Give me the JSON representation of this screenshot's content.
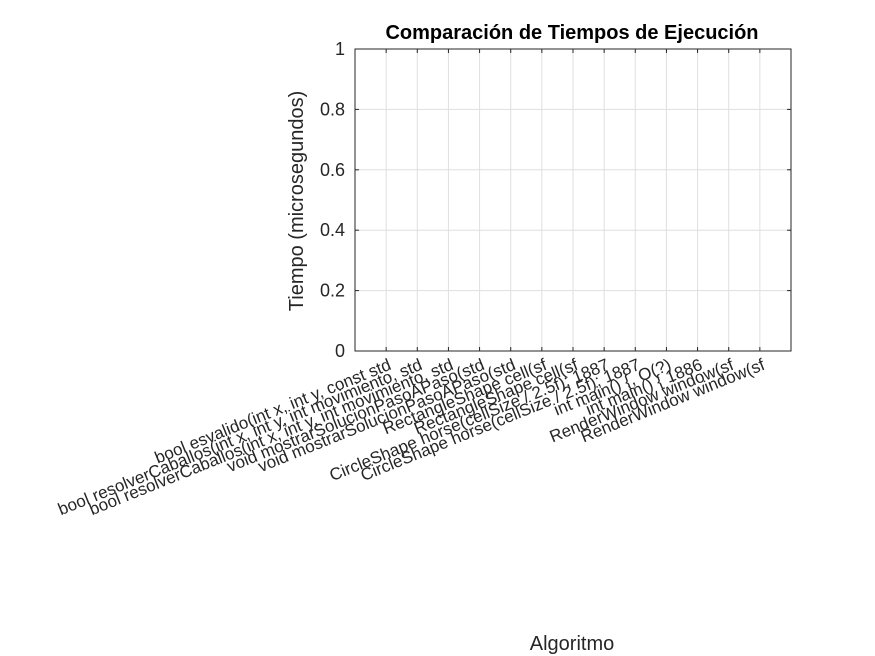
{
  "chart_data": {
    "type": "bar",
    "title": "Comparación de Tiempos de Ejecución",
    "xlabel": "Algoritmo",
    "ylabel": "Tiempo (microsegundos)",
    "ylim": [
      0,
      1
    ],
    "yticks": [
      0,
      0.2,
      0.4,
      0.6,
      0.8,
      1
    ],
    "ytick_labels": [
      "0",
      "0.2",
      "0.4",
      "0.6",
      "0.8",
      "1"
    ],
    "grid": true,
    "categories": [
      "bool esvalido(int x, int y, const std",
      "bool resolverCaballos(int x, int y, int movimiento, std",
      "bool resolverCaballos(int x, int y, int movimiento, std",
      "void mostrarSolucionPasoAPaso(std",
      "void mostrarSolucionPasoAPaso(std",
      "RectangleShape cell(sf",
      "RectangleShape cell(sf",
      "CircleShape horse(cellSize / 2.5f); 1887",
      "CircleShape horse(cellSize / 2.5f); 1887",
      "int main() { 1886",
      "int main() {, O(?)",
      "RenderWindow window(sf",
      "RenderWindow window(sf"
    ],
    "visible_categories": [
      "bool esvalido(int x, int y, const std",
      "bool resolverCaballos(int x, int y, int movimiento, std",
      "bool resolverCaballos(int x, int y, int movimiento, std",
      "void mostrarSolucionPasoAPaso(std",
      "void mostrarSolucionPasoAPaso(std",
      "RectangleShape cell(sf",
      "RectangleShape cell(sf",
      "CircleShape horse(cellSize / 2.5f); 1887",
      "CircleShape horse(cellSize / 2.5f); 1887",
      "int main() {, O(?)",
      "int main() { 1886",
      "RenderWindow window(sf",
      "RenderWindow window(sf"
    ],
    "values": [
      null,
      null,
      null,
      null,
      null,
      null,
      null,
      null,
      null,
      null,
      null,
      null,
      null
    ]
  },
  "colors": {
    "axis": "#262626",
    "grid": "#dfdfdf",
    "background": "#ffffff"
  }
}
